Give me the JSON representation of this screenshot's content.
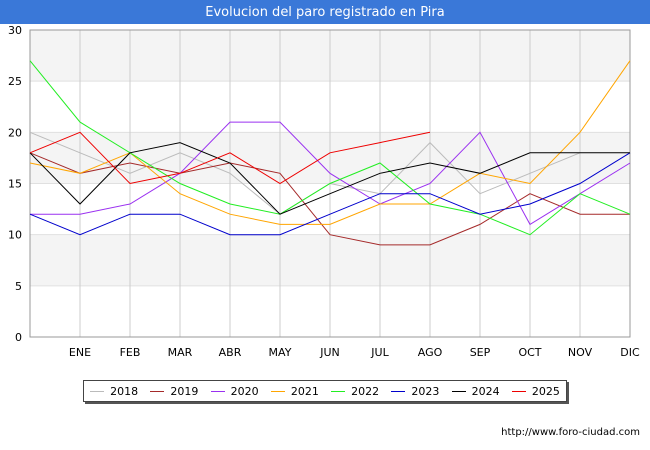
{
  "title": "Evolucion del paro registrado en Pira",
  "credit": "http://www.foro-ciudad.com",
  "chart_data": {
    "type": "line",
    "categories": [
      "",
      "ENE",
      "FEB",
      "MAR",
      "ABR",
      "MAY",
      "JUN",
      "JUL",
      "AGO",
      "SEP",
      "OCT",
      "NOV",
      "DIC"
    ],
    "ylim": [
      0,
      30
    ],
    "yticks": [
      0,
      5,
      10,
      15,
      20,
      25,
      30
    ],
    "grid": true,
    "legend_position": "bottom",
    "series": [
      {
        "name": "2018",
        "color": "#bbbbbb",
        "values": [
          20,
          18,
          16,
          18,
          16,
          12,
          15,
          14,
          19,
          14,
          16,
          18,
          null
        ]
      },
      {
        "name": "2019",
        "color": "#a52a2a",
        "values": [
          18,
          16,
          17,
          16,
          17,
          16,
          10,
          9,
          9,
          11,
          14,
          12,
          12
        ]
      },
      {
        "name": "2020",
        "color": "#9a30f0",
        "values": [
          12,
          12,
          13,
          16,
          21,
          21,
          16,
          13,
          15,
          20,
          11,
          14,
          17
        ]
      },
      {
        "name": "2021",
        "color": "#ffa500",
        "values": [
          17,
          16,
          18,
          14,
          12,
          11,
          11,
          13,
          13,
          16,
          15,
          20,
          27
        ]
      },
      {
        "name": "2022",
        "color": "#22ee22",
        "values": [
          27,
          21,
          18,
          15,
          13,
          12,
          15,
          17,
          13,
          12,
          10,
          14,
          12
        ]
      },
      {
        "name": "2023",
        "color": "#0000cc",
        "values": [
          12,
          10,
          12,
          12,
          10,
          10,
          12,
          14,
          14,
          12,
          13,
          15,
          18
        ]
      },
      {
        "name": "2024",
        "color": "#000000",
        "values": [
          18,
          13,
          18,
          19,
          17,
          12,
          14,
          16,
          17,
          16,
          18,
          18,
          18
        ]
      },
      {
        "name": "2025",
        "color": "#ee0000",
        "values": [
          18,
          20,
          15,
          16,
          18,
          15,
          18,
          19,
          20,
          null,
          null,
          null,
          null
        ]
      }
    ]
  }
}
